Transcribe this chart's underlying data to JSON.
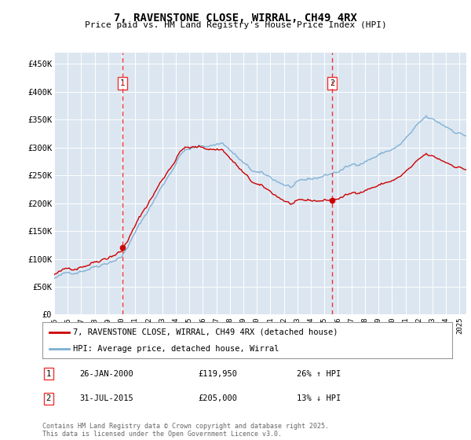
{
  "title": "7, RAVENSTONE CLOSE, WIRRAL, CH49 4RX",
  "subtitle": "Price paid vs. HM Land Registry's House Price Index (HPI)",
  "bg_color": "#dce6f1",
  "plot_bg_color": "#dce6f1",
  "red_line_color": "#cc0000",
  "blue_line_color": "#7bafd4",
  "dashed_line_color": "#ee3333",
  "ylim": [
    0,
    470000
  ],
  "yticks": [
    0,
    50000,
    100000,
    150000,
    200000,
    250000,
    300000,
    350000,
    400000,
    450000
  ],
  "ytick_labels": [
    "£0",
    "£50K",
    "£100K",
    "£150K",
    "£200K",
    "£250K",
    "£300K",
    "£350K",
    "£400K",
    "£450K"
  ],
  "xlim_start": 1995.0,
  "xlim_end": 2025.5,
  "sale1_x": 2000.07,
  "sale1_y": 119950,
  "sale1_label": "1",
  "sale1_date": "26-JAN-2000",
  "sale1_price": "£119,950",
  "sale1_hpi": "26% ↑ HPI",
  "sale2_x": 2015.58,
  "sale2_y": 205000,
  "sale2_label": "2",
  "sale2_date": "31-JUL-2015",
  "sale2_price": "£205,000",
  "sale2_hpi": "13% ↓ HPI",
  "legend_label1": "7, RAVENSTONE CLOSE, WIRRAL, CH49 4RX (detached house)",
  "legend_label2": "HPI: Average price, detached house, Wirral",
  "footer": "Contains HM Land Registry data © Crown copyright and database right 2025.\nThis data is licensed under the Open Government Licence v3.0.",
  "xtick_years": [
    1995,
    1996,
    1997,
    1998,
    1999,
    2000,
    2001,
    2002,
    2003,
    2004,
    2005,
    2006,
    2007,
    2008,
    2009,
    2010,
    2011,
    2012,
    2013,
    2014,
    2015,
    2016,
    2017,
    2018,
    2019,
    2020,
    2021,
    2022,
    2023,
    2024,
    2025
  ]
}
